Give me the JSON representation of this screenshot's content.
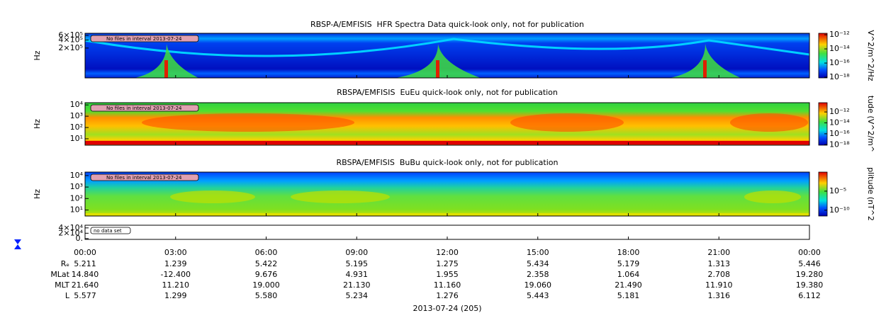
{
  "chart_data": [
    {
      "type": "spectrogram",
      "title": "RBSP-A/EMFISIS  HFR Spectra Data quick-look only, not for publication",
      "ylabel": "Hz",
      "log": true,
      "ylim": [
        15000,
        720000
      ],
      "yticks": [
        {
          "value": 200000,
          "label": "2×10⁵"
        },
        {
          "value": 400000,
          "label": "4×10⁵"
        },
        {
          "value": 600000,
          "label": "6×10⁵"
        }
      ],
      "annotation": "No files in interval 2013-07-24",
      "colorbar": {
        "label": "V^2/m^2/Hz",
        "log": true,
        "lim": [
          8e-19,
          1.6e-12
        ],
        "ticks": [
          {
            "value": 1e-12,
            "label": "10⁻¹²"
          },
          {
            "value": 1e-14,
            "label": "10⁻¹⁴"
          },
          {
            "value": 1e-16,
            "label": "10⁻¹⁶"
          },
          {
            "value": 1e-18,
            "label": "10⁻¹⁸"
          }
        ]
      }
    },
    {
      "type": "spectrogram",
      "title": "RBSPA/EMFISIS  EuEu quick-look only, not for publication",
      "ylabel": "Hz",
      "log": true,
      "ylim": [
        2.7,
        15800
      ],
      "yticks": [
        {
          "value": 10,
          "label": "10¹"
        },
        {
          "value": 100,
          "label": "10²"
        },
        {
          "value": 1000,
          "label": "10³"
        },
        {
          "value": 10000,
          "label": "10⁴"
        }
      ],
      "annotation": "No files in interval 2013-07-24",
      "colorbar": {
        "label": "tude (V^2/m^",
        "log": true,
        "lim": [
          8e-19,
          5e-11
        ],
        "ticks": [
          {
            "value": 1e-12,
            "label": "10⁻¹²"
          },
          {
            "value": 1e-14,
            "label": "10⁻¹⁴"
          },
          {
            "value": 1e-16,
            "label": "10⁻¹⁶"
          },
          {
            "value": 1e-18,
            "label": "10⁻¹⁸"
          }
        ]
      }
    },
    {
      "type": "spectrogram",
      "title": "RBSPA/EMFISIS  BuBu quick-look only, not for publication",
      "ylabel": "Hz",
      "log": true,
      "ylim": [
        3,
        20000
      ],
      "yticks": [
        {
          "value": 10,
          "label": "10¹"
        },
        {
          "value": 100,
          "label": "10²"
        },
        {
          "value": 1000,
          "label": "10³"
        },
        {
          "value": 10000,
          "label": "10⁴"
        }
      ],
      "annotation": "No files in interval 2013-07-24",
      "colorbar": {
        "label": "plitude (nT^2",
        "log": true,
        "lim": [
          3e-12,
          1
        ],
        "ticks": [
          {
            "value": 1e-05,
            "label": "10⁻⁵"
          },
          {
            "value": 1e-10,
            "label": "10⁻¹⁰"
          }
        ]
      }
    },
    {
      "type": "empty",
      "log": false,
      "ylim": [
        -3000,
        50000
      ],
      "yticks": [
        {
          "value": 0,
          "label": "0."
        },
        {
          "value": 20000,
          "label": "2×10⁴"
        },
        {
          "value": 40000,
          "label": "4×10⁴"
        }
      ],
      "annotation": "no data set"
    }
  ],
  "time_axis": {
    "ticks": [
      "00:00",
      "03:00",
      "06:00",
      "09:00",
      "12:00",
      "15:00",
      "18:00",
      "21:00",
      "00:00"
    ],
    "label": "2013-07-24 (205)"
  },
  "ephemeris": [
    {
      "name": "Rₑ",
      "values": [
        "5.211",
        "1.239",
        "5.422",
        "5.195",
        "1.275",
        "5.434",
        "5.179",
        "1.313",
        "5.446"
      ]
    },
    {
      "name": "MLat",
      "values": [
        "14.840",
        "-12.400",
        "9.676",
        "4.931",
        "1.955",
        "2.358",
        "1.064",
        "2.708",
        "19.280"
      ]
    },
    {
      "name": "MLT",
      "values": [
        "21.640",
        "11.210",
        "19.000",
        "21.130",
        "11.160",
        "19.060",
        "21.490",
        "11.910",
        "19.380"
      ]
    },
    {
      "name": "L",
      "values": [
        "5.577",
        "1.299",
        "5.580",
        "5.234",
        "1.276",
        "5.443",
        "5.181",
        "1.316",
        "6.112"
      ]
    }
  ]
}
